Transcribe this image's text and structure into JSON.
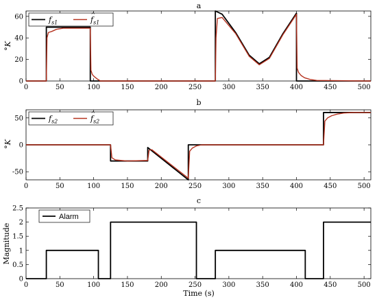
{
  "chart_data": [
    {
      "type": "line",
      "title": "a",
      "ylabel": "°K",
      "xlim": [
        0,
        510
      ],
      "ylim": [
        0,
        65
      ],
      "xticks": [
        0,
        50,
        100,
        150,
        200,
        250,
        300,
        350,
        400,
        450,
        500
      ],
      "yticks": [
        0,
        20,
        40,
        60
      ],
      "legend": "top-left",
      "series": [
        {
          "name": "f_s1",
          "legend_main": "f",
          "legend_sub": "s1",
          "legend_hat": false,
          "color": "#000000",
          "width": 1.8,
          "x": [
            0,
            30,
            30,
            95,
            95,
            280,
            280,
            290,
            310,
            330,
            345,
            360,
            380,
            400,
            400,
            510
          ],
          "y": [
            0,
            0,
            50,
            50,
            0,
            0,
            65,
            62,
            45,
            24,
            16,
            22,
            44,
            63,
            0,
            0
          ]
        },
        {
          "name": "f̂_s1",
          "legend_main": "f",
          "legend_sub": "s1",
          "legend_hat": true,
          "color": "#b5321f",
          "width": 1.4,
          "x": [
            0,
            30,
            31,
            33,
            38,
            45,
            55,
            70,
            95,
            96,
            98,
            101,
            105,
            110,
            280,
            281,
            283,
            290,
            310,
            330,
            345,
            360,
            380,
            400,
            401,
            403,
            407,
            412,
            420,
            430,
            510
          ],
          "y": [
            0,
            0,
            40,
            45,
            46,
            48,
            49,
            49,
            49,
            10,
            6,
            4,
            2,
            0,
            0,
            40,
            58,
            59,
            44,
            23,
            15,
            21,
            43,
            62,
            12,
            8,
            5,
            3,
            1.5,
            0.5,
            0
          ]
        }
      ]
    },
    {
      "type": "line",
      "title": "b",
      "ylabel": "°K",
      "xlim": [
        0,
        510
      ],
      "ylim": [
        -65,
        65
      ],
      "xticks": [
        0,
        50,
        100,
        150,
        200,
        250,
        300,
        350,
        400,
        450,
        500
      ],
      "yticks": [
        -50,
        0,
        50
      ],
      "legend": "top-left",
      "series": [
        {
          "name": "f_s2",
          "legend_main": "f",
          "legend_sub": "s2",
          "legend_hat": false,
          "color": "#000000",
          "width": 1.8,
          "x": [
            0,
            125,
            125,
            180,
            180,
            240,
            240,
            440,
            440,
            510
          ],
          "y": [
            0,
            0,
            -30,
            -30,
            -5,
            -65,
            0,
            0,
            60,
            60
          ]
        },
        {
          "name": "f̂_s2",
          "legend_main": "f",
          "legend_sub": "s2",
          "legend_hat": true,
          "color": "#b5321f",
          "width": 1.4,
          "x": [
            0,
            125,
            127,
            132,
            140,
            150,
            180,
            182,
            186,
            240,
            242,
            246,
            252,
            260,
            440,
            442,
            446,
            452,
            460,
            470,
            485,
            510
          ],
          "y": [
            0,
            0,
            -24,
            -28,
            -29,
            -30,
            -29,
            -10,
            -9,
            -62,
            -12,
            -6,
            -2,
            0,
            0,
            44,
            50,
            54,
            57,
            59,
            60,
            60
          ]
        }
      ]
    },
    {
      "type": "line",
      "title": "c",
      "xlabel": "Time (s)",
      "ylabel": "Magnitude",
      "xlim": [
        0,
        510
      ],
      "ylim": [
        0,
        2.5
      ],
      "xticks": [
        0,
        50,
        100,
        150,
        200,
        250,
        300,
        350,
        400,
        450,
        500
      ],
      "yticks": [
        0,
        0.5,
        1,
        1.5,
        2,
        2.5
      ],
      "legend": "top-left",
      "series": [
        {
          "name": "Alarm",
          "color": "#000000",
          "width": 1.8,
          "x": [
            0,
            30,
            30,
            107,
            107,
            125,
            125,
            252,
            252,
            280,
            280,
            413,
            413,
            440,
            440,
            510
          ],
          "y": [
            0,
            0,
            1,
            1,
            0,
            0,
            2,
            2,
            0,
            0,
            1,
            1,
            0,
            0,
            2,
            2
          ]
        }
      ]
    }
  ]
}
